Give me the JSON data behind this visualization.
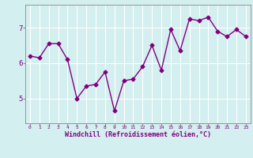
{
  "x": [
    0,
    1,
    2,
    3,
    4,
    5,
    6,
    7,
    8,
    9,
    10,
    11,
    12,
    13,
    14,
    15,
    16,
    17,
    18,
    19,
    20,
    21,
    22,
    23
  ],
  "y": [
    6.2,
    6.15,
    6.55,
    6.55,
    6.1,
    5.0,
    5.35,
    5.4,
    5.75,
    4.65,
    5.5,
    5.55,
    5.9,
    6.5,
    5.8,
    6.95,
    6.35,
    7.25,
    7.2,
    7.3,
    6.9,
    6.75,
    6.95,
    6.75
  ],
  "line_color": "#800080",
  "marker": "D",
  "marker_size": 2.5,
  "linewidth": 1.0,
  "bg_color": "#d4efef",
  "grid_color": "#ffffff",
  "xlabel": "Windchill (Refroidissement éolien,°C)",
  "xlabel_color": "#800080",
  "tick_color": "#800080",
  "yticks": [
    5,
    6,
    7
  ],
  "xticks": [
    0,
    1,
    2,
    3,
    4,
    5,
    6,
    7,
    8,
    9,
    10,
    11,
    12,
    13,
    14,
    15,
    16,
    17,
    18,
    19,
    20,
    21,
    22,
    23
  ],
  "ylim": [
    4.3,
    7.65
  ],
  "xlim": [
    -0.5,
    23.5
  ]
}
